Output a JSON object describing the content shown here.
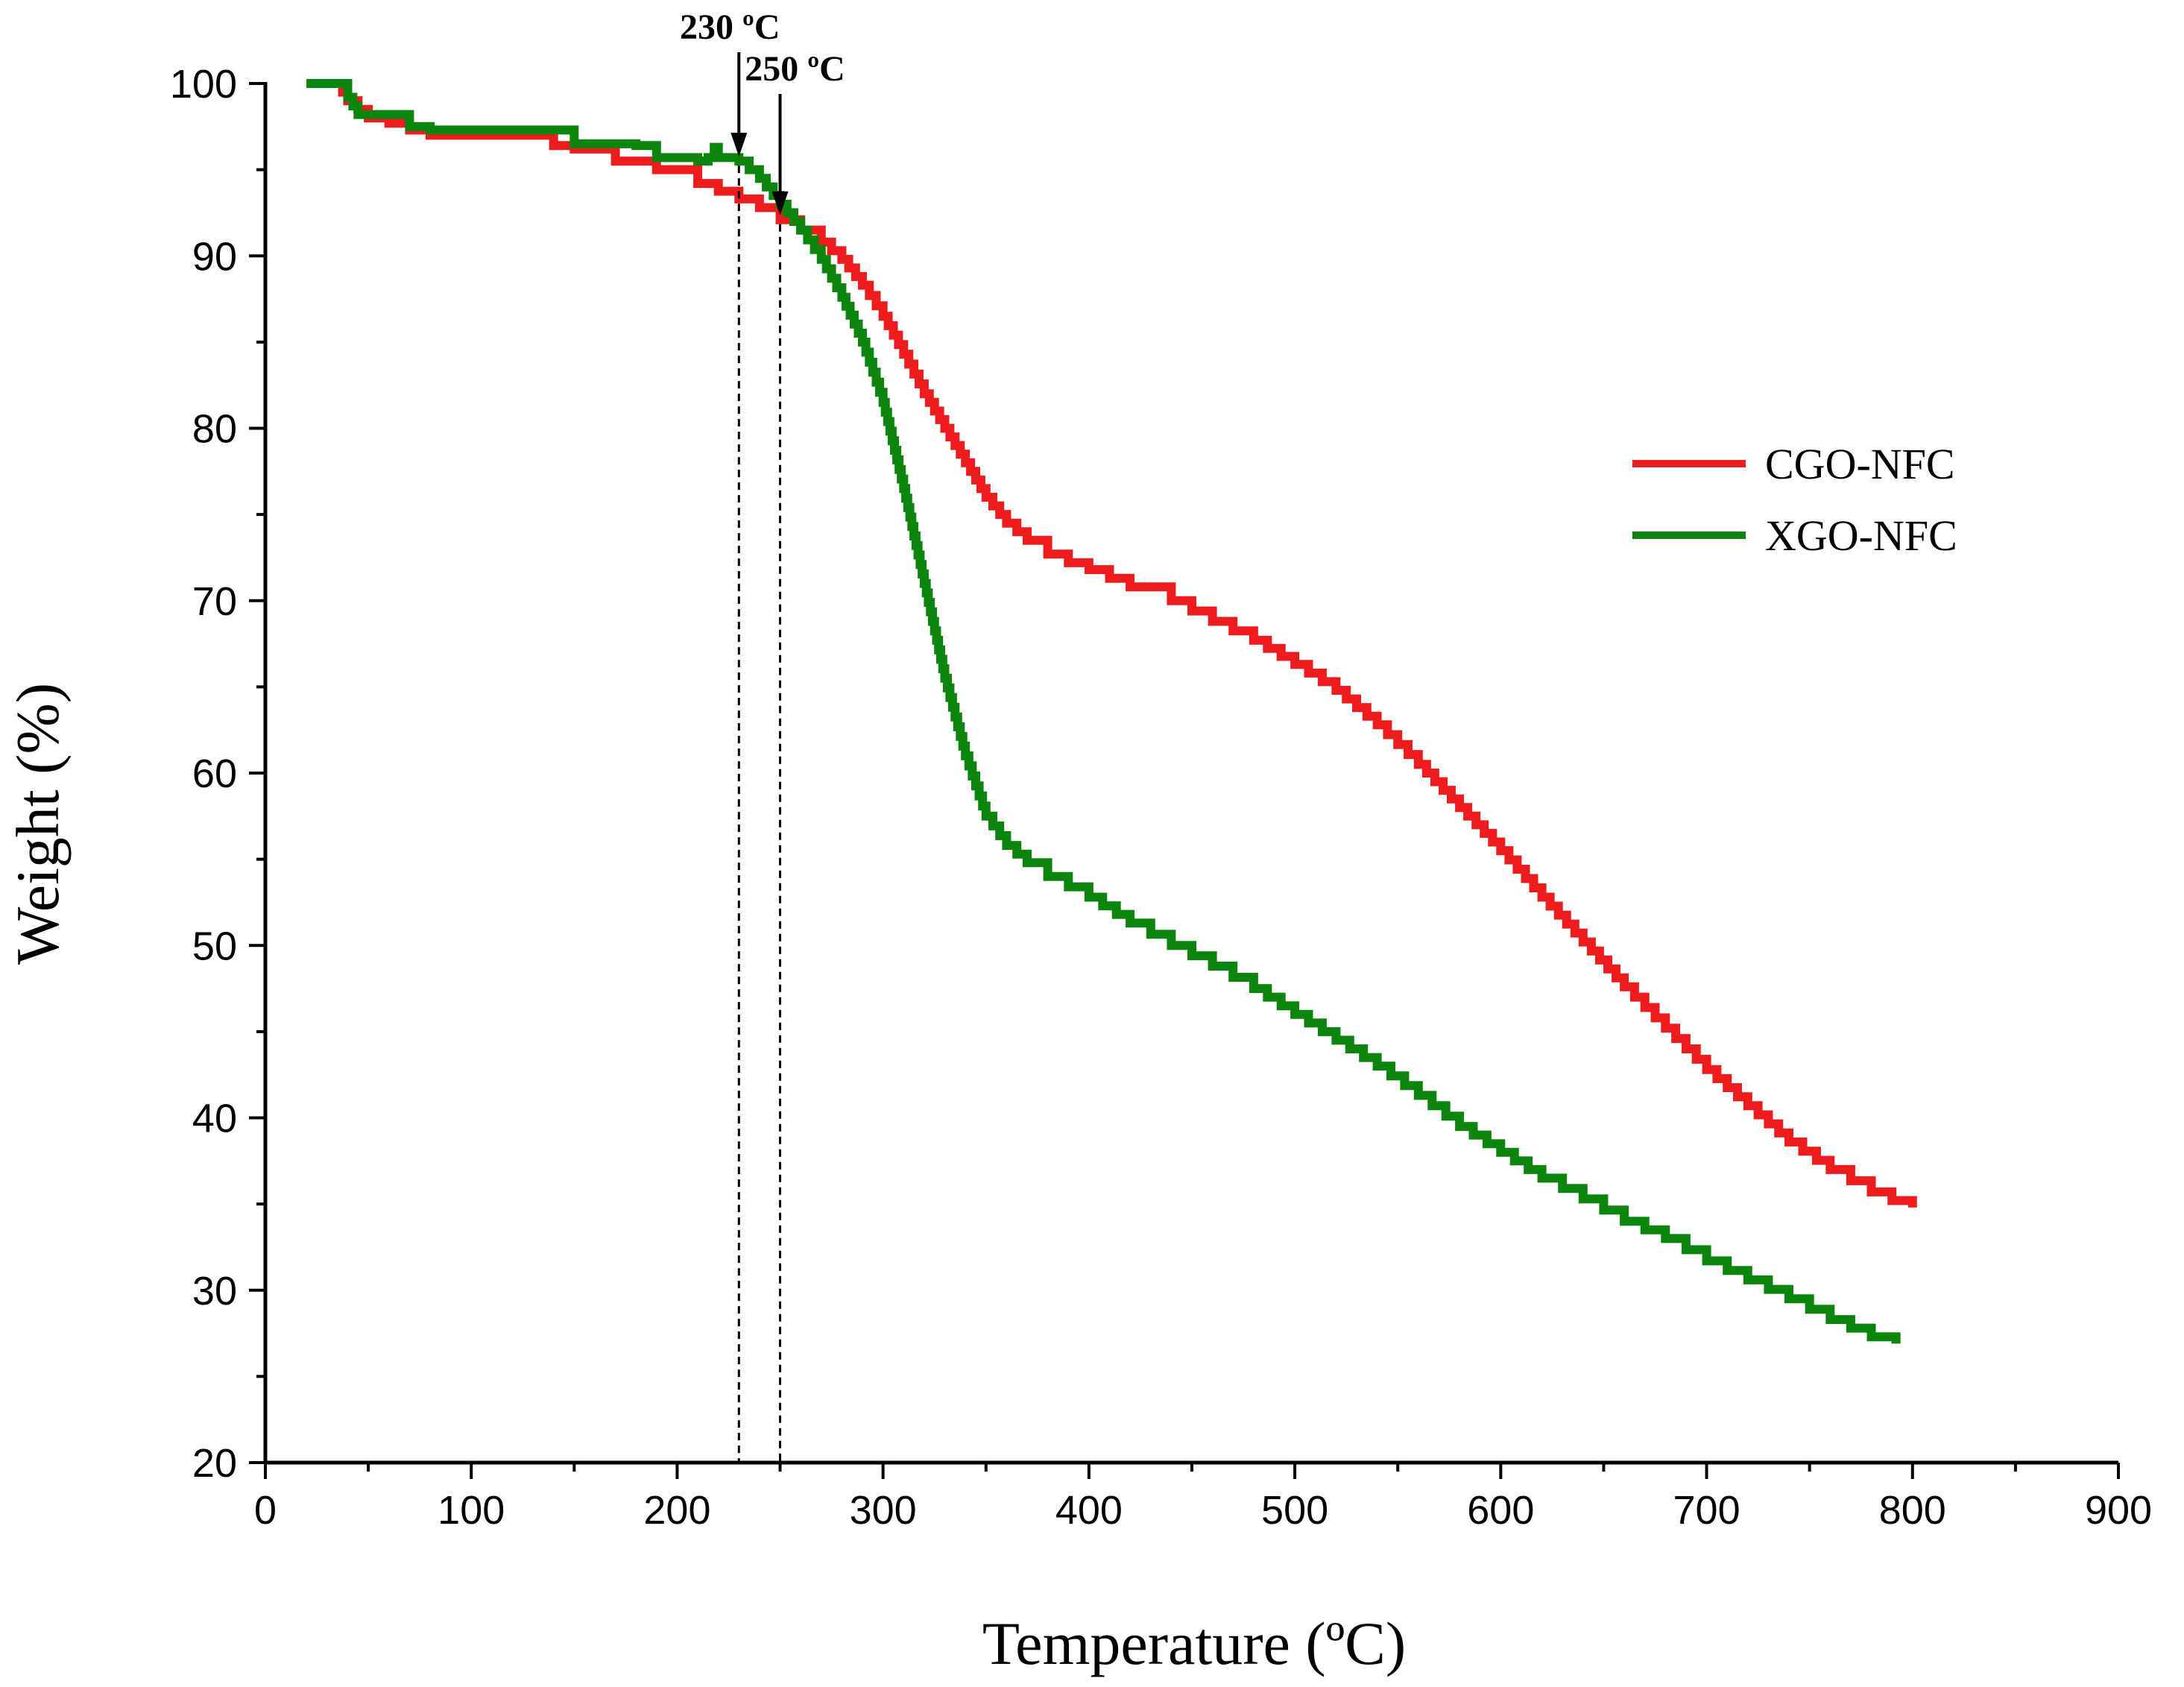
{
  "chart_data": {
    "type": "line",
    "title": "",
    "xlabel": "Temperature (ºC)",
    "ylabel": "Weight (%)",
    "xlim": [
      0,
      900
    ],
    "ylim": [
      20,
      100
    ],
    "xticks": [
      0,
      100,
      200,
      300,
      400,
      500,
      600,
      700,
      800,
      900
    ],
    "yticks": [
      20,
      30,
      40,
      50,
      60,
      70,
      80,
      90,
      100
    ],
    "xtick_labels": [
      "0",
      "100",
      "200",
      "300",
      "400",
      "500",
      "600",
      "700",
      "800",
      "900"
    ],
    "ytick_labels": [
      "20",
      "30",
      "40",
      "50",
      "60",
      "70",
      "80",
      "90",
      "100"
    ],
    "grid": false,
    "legend_position": "right",
    "series": [
      {
        "name": "CGO-NFC",
        "color": "#ee1c1c",
        "points": [
          [
            20,
            100
          ],
          [
            35,
            100
          ],
          [
            40,
            99
          ],
          [
            45,
            98.5
          ],
          [
            50,
            98
          ],
          [
            60,
            97.7
          ],
          [
            70,
            97.3
          ],
          [
            80,
            97
          ],
          [
            100,
            97
          ],
          [
            130,
            97
          ],
          [
            140,
            96.4
          ],
          [
            150,
            96.2
          ],
          [
            170,
            95.5
          ],
          [
            190,
            95
          ],
          [
            210,
            94.2
          ],
          [
            230,
            93.3
          ],
          [
            240,
            92.8
          ],
          [
            250,
            92.1
          ],
          [
            260,
            91.5
          ],
          [
            270,
            90.8
          ],
          [
            280,
            89.8
          ],
          [
            290,
            88.3
          ],
          [
            300,
            86.5
          ],
          [
            310,
            84.3
          ],
          [
            320,
            82
          ],
          [
            330,
            80
          ],
          [
            340,
            78
          ],
          [
            350,
            76
          ],
          [
            360,
            74.5
          ],
          [
            370,
            73.5
          ],
          [
            380,
            72.7
          ],
          [
            390,
            72.2
          ],
          [
            400,
            71.8
          ],
          [
            420,
            70.8
          ],
          [
            440,
            70
          ],
          [
            460,
            68.8
          ],
          [
            480,
            67.7
          ],
          [
            500,
            66.3
          ],
          [
            520,
            64.8
          ],
          [
            540,
            62.8
          ],
          [
            560,
            60.5
          ],
          [
            580,
            58
          ],
          [
            600,
            55.5
          ],
          [
            620,
            52.8
          ],
          [
            640,
            50.2
          ],
          [
            660,
            47.6
          ],
          [
            680,
            45.2
          ],
          [
            700,
            42.8
          ],
          [
            720,
            40.7
          ],
          [
            740,
            38.6
          ],
          [
            760,
            37
          ],
          [
            780,
            35.7
          ],
          [
            790,
            35.2
          ],
          [
            800,
            34.8
          ]
        ]
      },
      {
        "name": "XGO-NFC",
        "color": "#0b850b",
        "points": [
          [
            20,
            100
          ],
          [
            35,
            100
          ],
          [
            40,
            99.2
          ],
          [
            45,
            98.2
          ],
          [
            60,
            98.2
          ],
          [
            70,
            97.5
          ],
          [
            80,
            97.3
          ],
          [
            100,
            97.3
          ],
          [
            145,
            97.3
          ],
          [
            150,
            96.5
          ],
          [
            180,
            96.4
          ],
          [
            190,
            95.7
          ],
          [
            210,
            95.5
          ],
          [
            215,
            95.7
          ],
          [
            218,
            96.3
          ],
          [
            220,
            95.7
          ],
          [
            230,
            95.5
          ],
          [
            235,
            95
          ],
          [
            240,
            94.5
          ],
          [
            250,
            93
          ],
          [
            260,
            91.5
          ],
          [
            270,
            89.8
          ],
          [
            280,
            87.6
          ],
          [
            290,
            85
          ],
          [
            300,
            81.5
          ],
          [
            310,
            76.5
          ],
          [
            320,
            71
          ],
          [
            330,
            65.5
          ],
          [
            340,
            61
          ],
          [
            350,
            57.5
          ],
          [
            360,
            55.8
          ],
          [
            370,
            54.8
          ],
          [
            380,
            54
          ],
          [
            400,
            52.8
          ],
          [
            420,
            51.3
          ],
          [
            440,
            50
          ],
          [
            460,
            48.8
          ],
          [
            480,
            47.5
          ],
          [
            500,
            46
          ],
          [
            520,
            44.5
          ],
          [
            540,
            43
          ],
          [
            560,
            41.3
          ],
          [
            580,
            39.5
          ],
          [
            600,
            38
          ],
          [
            620,
            36.5
          ],
          [
            640,
            35.3
          ],
          [
            660,
            34
          ],
          [
            680,
            33
          ],
          [
            700,
            31.7
          ],
          [
            720,
            30.6
          ],
          [
            740,
            29.5
          ],
          [
            760,
            28.3
          ],
          [
            780,
            27.3
          ],
          [
            792,
            26.9
          ]
        ]
      }
    ],
    "annotations": [
      {
        "label": "230 ºC",
        "x": 230
      },
      {
        "label": "250 ºC",
        "x": 250
      }
    ]
  }
}
